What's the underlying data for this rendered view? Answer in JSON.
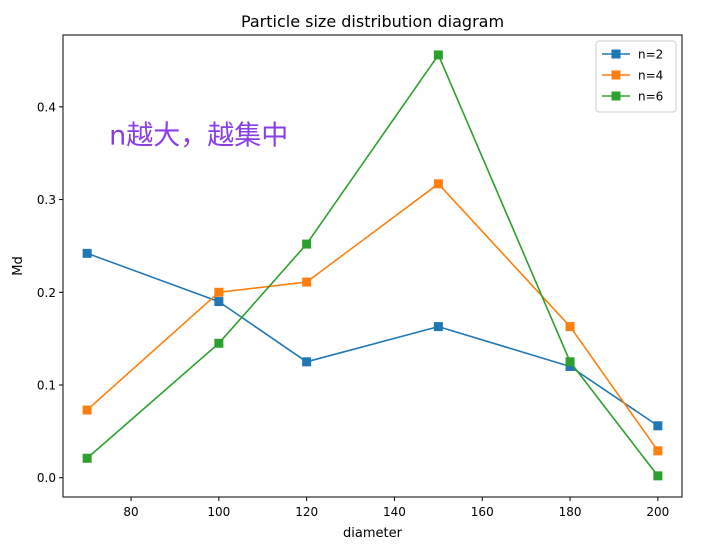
{
  "chart_data": {
    "type": "line",
    "title": "Particle size distribution diagram",
    "xlabel": "diameter",
    "ylabel": "Md",
    "x": [
      70,
      100,
      120,
      150,
      180,
      200
    ],
    "xlim": [
      64.5,
      205.5
    ],
    "ylim": [
      -0.0208,
      0.4775
    ],
    "xticks": [
      80,
      100,
      120,
      140,
      160,
      180,
      200
    ],
    "yticks": [
      0.0,
      0.1,
      0.2,
      0.3,
      0.4
    ],
    "ytick_labels": [
      "0.0",
      "0.1",
      "0.2",
      "0.3",
      "0.4"
    ],
    "grid": false,
    "legend_position": "top-right",
    "marker": "square",
    "annotation": {
      "text": "n越大，越集中",
      "x": 75,
      "y": 0.37,
      "color": "#8a3ee8"
    },
    "series": [
      {
        "name": "n=2",
        "color": "#1f77b4",
        "values": [
          0.242,
          0.19,
          0.125,
          0.163,
          0.12,
          0.056
        ]
      },
      {
        "name": "n=4",
        "color": "#ff7f0e",
        "values": [
          0.073,
          0.2,
          0.211,
          0.317,
          0.163,
          0.029
        ]
      },
      {
        "name": "n=6",
        "color": "#2ca02c",
        "values": [
          0.021,
          0.145,
          0.252,
          0.456,
          0.125,
          0.002
        ]
      }
    ]
  }
}
